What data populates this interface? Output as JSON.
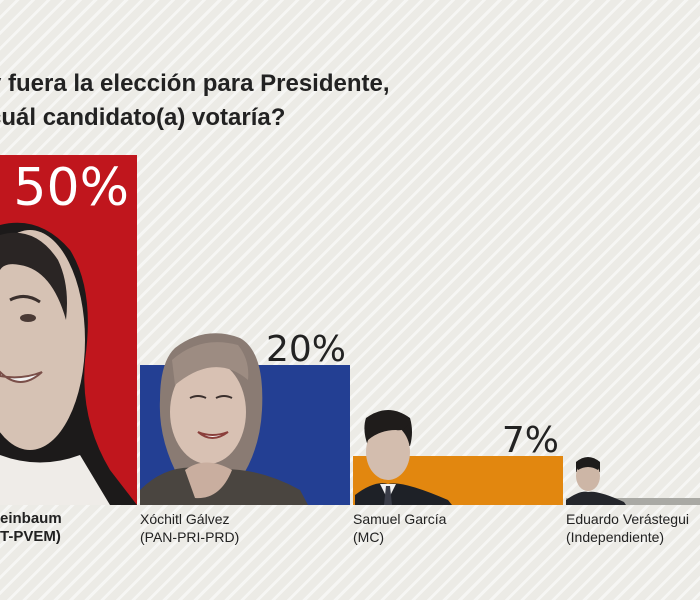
{
  "question": {
    "line1": "y fuera la elección para Presidente,",
    "line2": "cuál candidato(a) votaría?"
  },
  "chart_data": {
    "type": "bar",
    "categories": [
      "Claudia Sheinbaum",
      "Xóchitl Gálvez",
      "Samuel García",
      "Eduardo Verástegui"
    ],
    "values": [
      50,
      20,
      7,
      1
    ],
    "value_labels": [
      "50%",
      "20%",
      "7%",
      ""
    ],
    "names_shown": [
      "einbaum",
      "Xóchitl Gálvez",
      "Samuel García",
      "Eduardo Verástegui"
    ],
    "parties_shown": [
      "T-PVEM)",
      "(PAN-PRI-PRD)",
      "(MC)",
      "(Independiente)"
    ],
    "colors": [
      "#c0161d",
      "#233f93",
      "#e2870f",
      "#a9a9a4"
    ],
    "ylim": [
      0,
      50
    ],
    "unit": "%"
  }
}
